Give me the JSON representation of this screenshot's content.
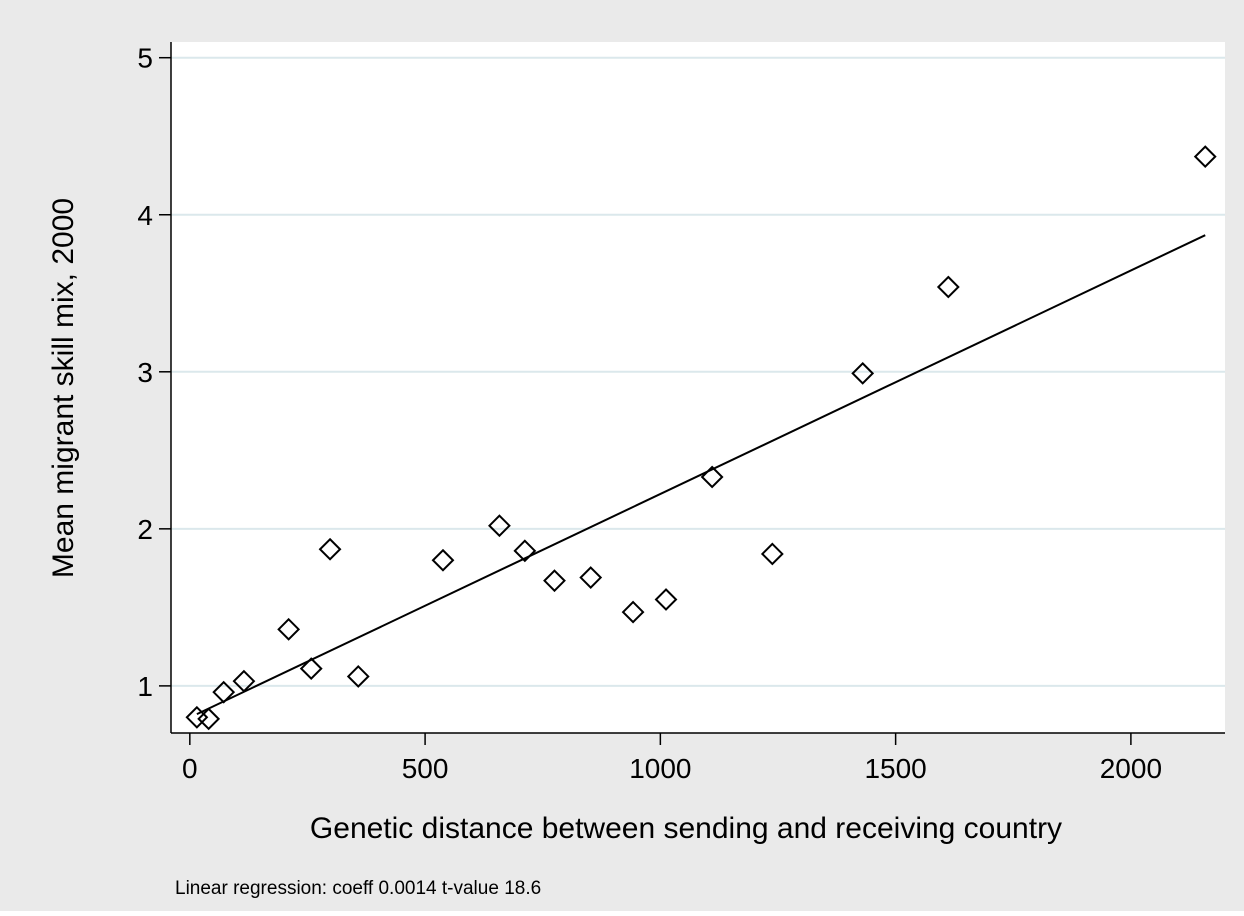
{
  "chart_data": {
    "type": "scatter",
    "title": "",
    "xlabel": "Genetic distance between sending and receiving country",
    "ylabel": "Mean migrant skill mix, 2000",
    "note": "Linear regression: coeff 0.0014 t-value 18.6",
    "xlim": [
      -40,
      2200
    ],
    "ylim": [
      0.7,
      5.1
    ],
    "x_ticks": [
      0,
      500,
      1000,
      1500,
      2000
    ],
    "x_tick_labels": [
      "0",
      "500",
      "1000",
      "1500",
      "2000"
    ],
    "y_ticks": [
      1,
      2,
      3,
      4,
      5
    ],
    "y_tick_labels": [
      "1",
      "2",
      "3",
      "4",
      "5"
    ],
    "grid": "horizontal",
    "legend": "none",
    "marker": "hollow-diamond",
    "colors": {
      "background": "#eaeaea",
      "plot_background": "#ffffff",
      "grid": "#dbe8ec",
      "marks": "#000000"
    },
    "points": [
      {
        "x": 15,
        "y": 0.8
      },
      {
        "x": 40,
        "y": 0.79
      },
      {
        "x": 72,
        "y": 0.96
      },
      {
        "x": 115,
        "y": 1.03
      },
      {
        "x": 210,
        "y": 1.36
      },
      {
        "x": 258,
        "y": 1.11
      },
      {
        "x": 298,
        "y": 1.87
      },
      {
        "x": 358,
        "y": 1.06
      },
      {
        "x": 538,
        "y": 1.8
      },
      {
        "x": 658,
        "y": 2.02
      },
      {
        "x": 712,
        "y": 1.86
      },
      {
        "x": 775,
        "y": 1.67
      },
      {
        "x": 852,
        "y": 1.69
      },
      {
        "x": 942,
        "y": 1.47
      },
      {
        "x": 1012,
        "y": 1.55
      },
      {
        "x": 1110,
        "y": 2.33
      },
      {
        "x": 1238,
        "y": 1.84
      },
      {
        "x": 1430,
        "y": 2.99
      },
      {
        "x": 1612,
        "y": 3.54
      },
      {
        "x": 2158,
        "y": 4.37
      }
    ],
    "fit_line": {
      "x": [
        15,
        2158
      ],
      "y": [
        0.82,
        3.87
      ]
    }
  }
}
